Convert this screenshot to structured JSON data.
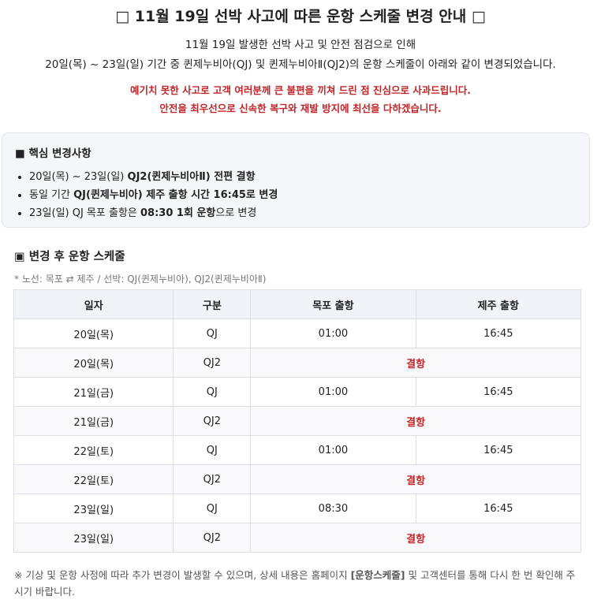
{
  "header": {
    "title": "□ 11월 19일 선박 사고에 따른 운항 스케줄 변경 안내 □",
    "intro": [
      "11월 19일 발생한 선박 사고 및 안전 점검으로 인해",
      "20일(목) ~ 23일(일) 기간 중 퀸제누비아(QJ) 및 퀸제누비아Ⅱ(QJ2)의 운항 스케줄이 아래와 같이 변경되었습니다."
    ],
    "apology": [
      "예기치 못한 사고로 고객 여러분께 큰 불편을 끼쳐 드린 점 진심으로 사과드립니다.",
      "안전을 최우선으로 신속한 복구와 재발 방지에 최선을 다하겠습니다."
    ]
  },
  "summary": {
    "title": "■ 핵심 변경사항",
    "items": [
      [
        {
          "text": "20일(목) ~ 23일(일) ",
          "bold": false
        },
        {
          "text": "QJ2(퀸제누비아Ⅱ) 전편 결항",
          "bold": true
        }
      ],
      [
        {
          "text": "동일 기간 ",
          "bold": false
        },
        {
          "text": "QJ(퀸제누비아) 제주 출항 시간 16:45로 변경",
          "bold": true
        }
      ],
      [
        {
          "text": "23일(일) QJ 목포 출항은 ",
          "bold": false
        },
        {
          "text": "08:30 1회 운항",
          "bold": true
        },
        {
          "text": "으로 변경",
          "bold": false
        }
      ]
    ]
  },
  "schedule": {
    "title": "▣ 변경 후 운항 스케줄",
    "note": "* 노선: 목포 ⇄ 제주 / 선박: QJ(퀸제누비아), QJ2(퀸제누비아Ⅱ)",
    "table": {
      "columns": [
        "일자",
        "구분",
        "목포 출항",
        "제주 출항"
      ],
      "rows": [
        [
          "20일(목)",
          "QJ",
          "01:00",
          "16:45"
        ],
        [
          "20일(목)",
          "QJ2",
          "결항"
        ],
        [
          "21일(금)",
          "QJ",
          "01:00",
          "16:45"
        ],
        [
          "21일(금)",
          "QJ2",
          "결항"
        ],
        [
          "22일(토)",
          "QJ",
          "01:00",
          "16:45"
        ],
        [
          "22일(토)",
          "QJ2",
          "결항"
        ],
        [
          "23일(일)",
          "QJ",
          "08:30",
          "16:45"
        ],
        [
          "23일(일)",
          "QJ2",
          "결항"
        ]
      ]
    }
  },
  "footer": [
    {
      "text": "※ 기상 및 운항 사정에 따라 추가 변경이 발생할 수 있으며, 상세 내용은 홈페이지 ",
      "bold": false
    },
    {
      "text": "[운항스케줄]",
      "bold": true
    },
    {
      "text": " 및 고객센터를 통해 다시 한 번 확인해 주시기 바랍니다.",
      "bold": false
    }
  ]
}
